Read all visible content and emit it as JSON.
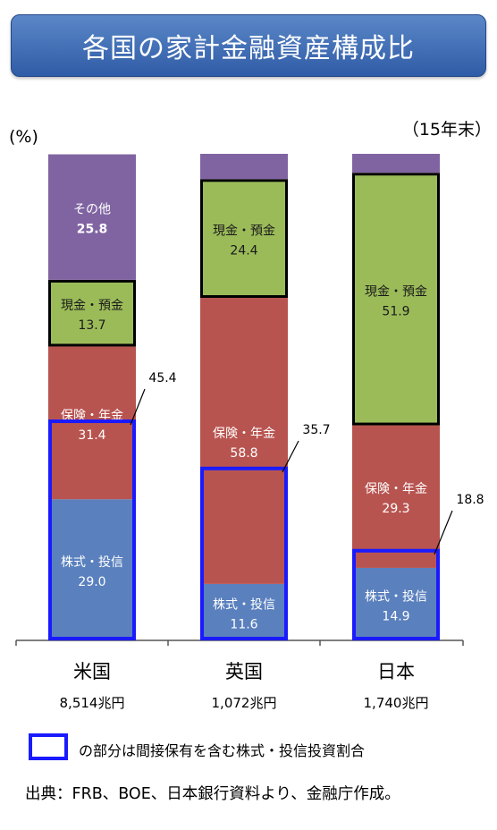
{
  "title": "各国の家計金融資産構成比",
  "unit_label": "(%)",
  "as_of": "（15年末）",
  "legend_text": "の部分は間接保有を含む株式・投信投資割合",
  "source": "出典：FRB、BOE、日本銀行資料より、金融庁作成。",
  "colors": {
    "stocks": "#5a80be",
    "insurance": "#b85450",
    "cash": "#9bbb59",
    "other": "#8064a2",
    "highlight": "#1a1aff"
  },
  "chart_data": {
    "type": "bar",
    "stacked": true,
    "categories": [
      "米国",
      "英国",
      "日本"
    ],
    "totals": [
      "8,514兆円",
      "1,072兆円",
      "1,740兆円"
    ],
    "series": [
      {
        "name": "株式・投信",
        "values": [
          29.0,
          11.6,
          14.9
        ]
      },
      {
        "name": "保険・年金",
        "values": [
          31.4,
          58.8,
          29.3
        ]
      },
      {
        "name": "現金・預金",
        "values": [
          13.7,
          24.4,
          51.9
        ]
      },
      {
        "name": "その他",
        "values": [
          25.8,
          null,
          null
        ]
      }
    ],
    "segment_labels": {
      "米国": [
        {
          "name": "株式・投信",
          "value": "29.0"
        },
        {
          "name": "保険・年金",
          "value": "31.4"
        },
        {
          "name": "現金・預金",
          "value": "13.7"
        },
        {
          "name": "その他",
          "value": "25.8"
        }
      ],
      "英国": [
        {
          "name": "株式・投信",
          "value": "11.6"
        },
        {
          "name": "保険・年金",
          "value": "58.8"
        },
        {
          "name": "現金・預金",
          "value": "24.4"
        }
      ],
      "日本": [
        {
          "name": "株式・投信",
          "value": "14.9"
        },
        {
          "name": "保険・年金",
          "value": "29.3"
        },
        {
          "name": "現金・預金",
          "value": "51.9"
        }
      ]
    },
    "indirect_stock_share": [
      45.4,
      35.7,
      18.8
    ],
    "ylim": [
      0,
      100
    ],
    "legend": "bottom"
  }
}
